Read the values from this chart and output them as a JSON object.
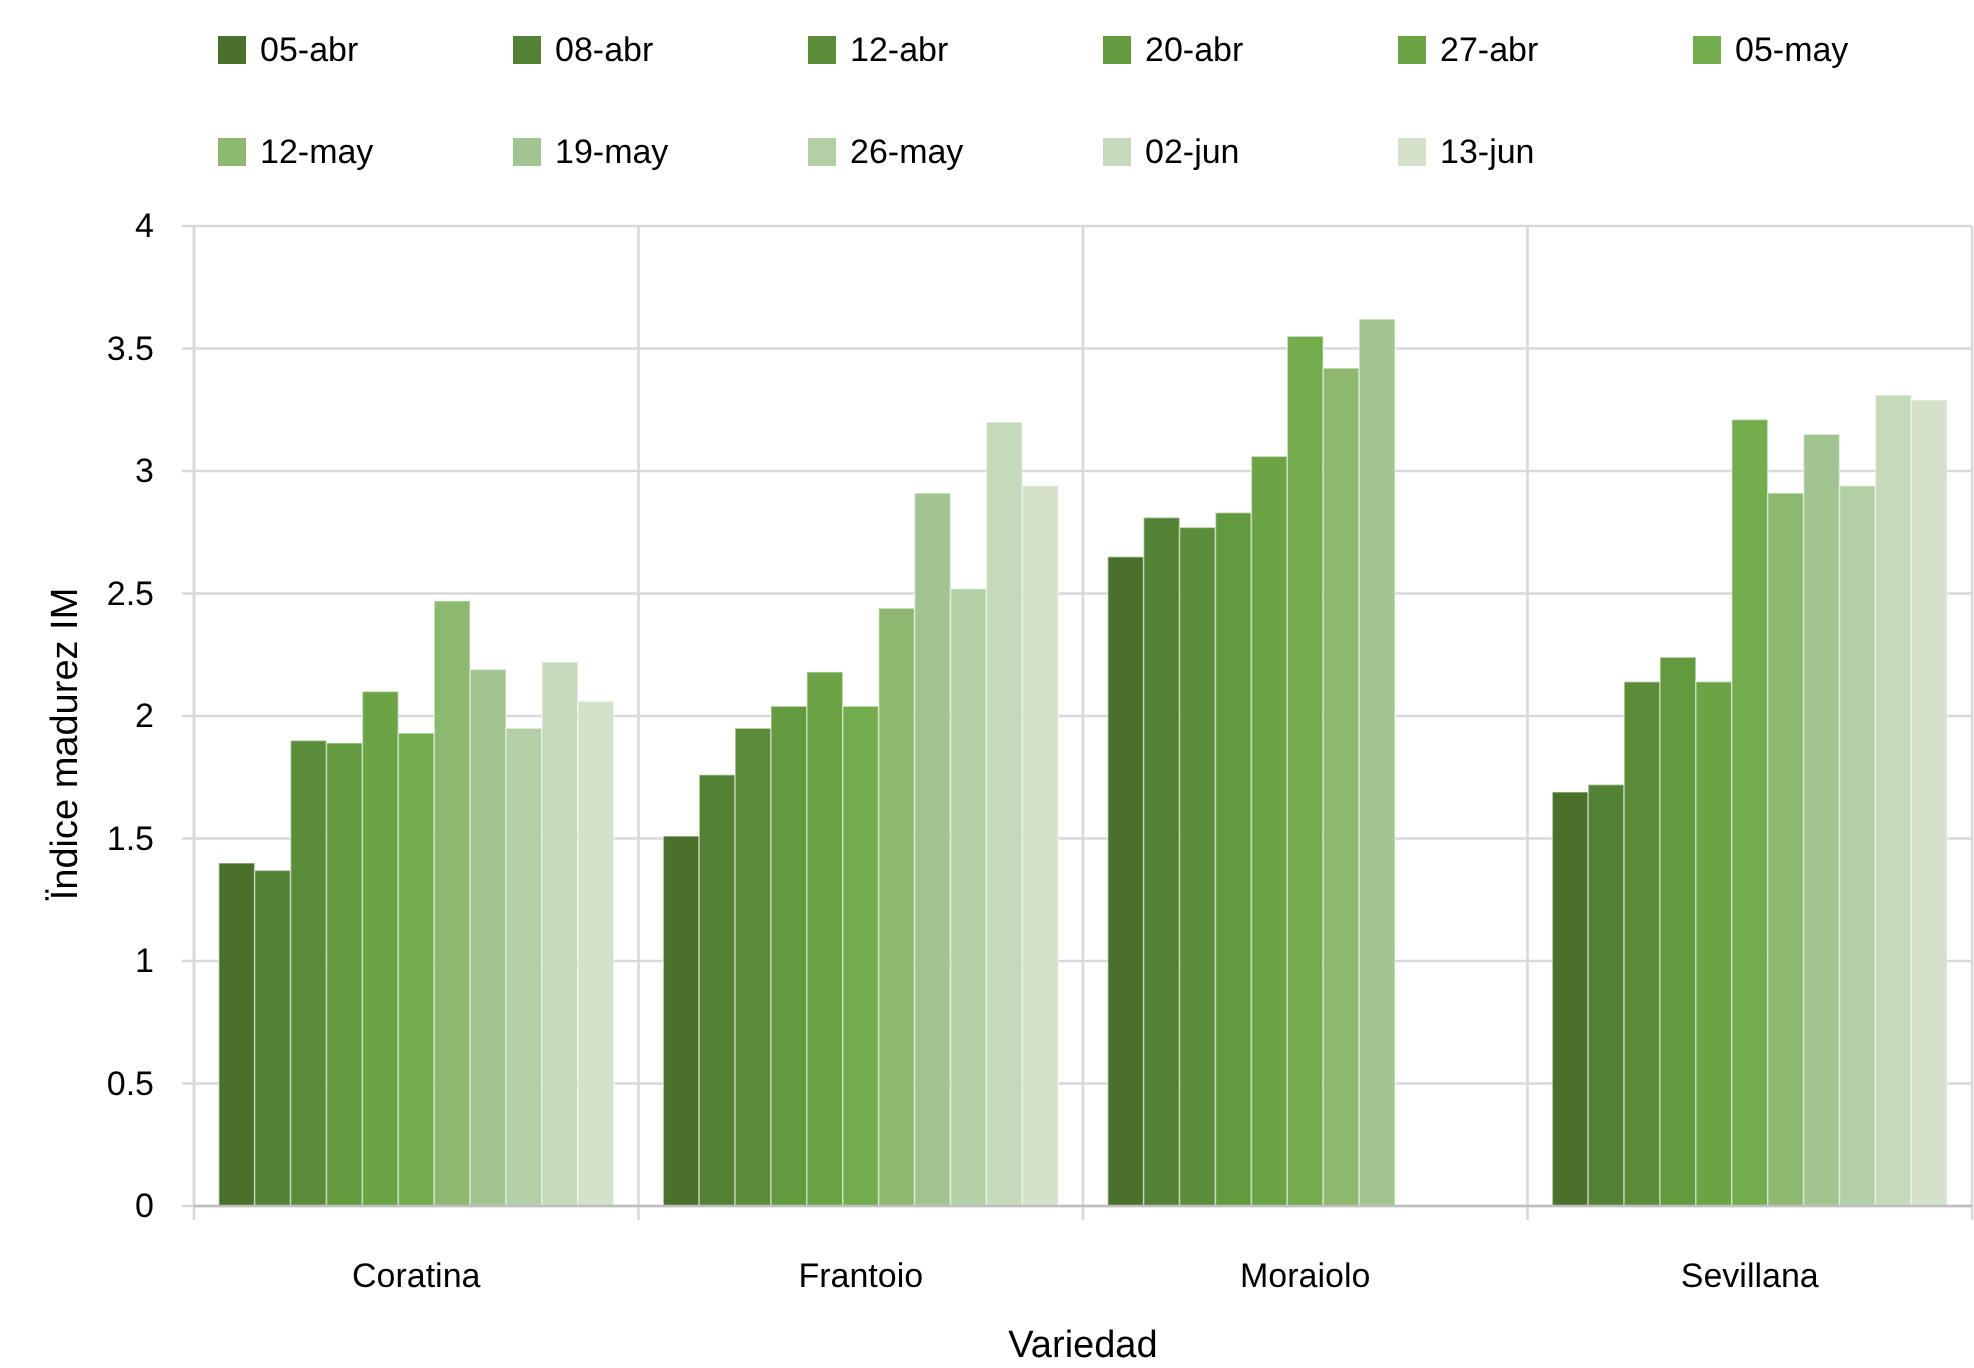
{
  "chart_data": {
    "type": "bar",
    "xlabel": "Variedad",
    "ylabel": "Ïndice madurez IM",
    "categories": [
      "Coratina",
      "Frantoio",
      "Moraiolo",
      "Sevillana"
    ],
    "series": [
      {
        "name": "05-abr",
        "color": "#4a712c",
        "values": [
          1.4,
          1.51,
          2.65,
          1.69
        ]
      },
      {
        "name": "08-abr",
        "color": "#538135",
        "values": [
          1.37,
          1.76,
          2.81,
          1.72
        ]
      },
      {
        "name": "12-abr",
        "color": "#5b8c3a",
        "values": [
          1.9,
          1.95,
          2.77,
          2.14
        ]
      },
      {
        "name": "20-abr",
        "color": "#639a40",
        "values": [
          1.89,
          2.04,
          2.83,
          2.24
        ]
      },
      {
        "name": "27-abr",
        "color": "#6ba345",
        "values": [
          2.1,
          2.18,
          3.06,
          2.14
        ]
      },
      {
        "name": "05-may",
        "color": "#72ac4d",
        "values": [
          1.93,
          2.04,
          3.55,
          3.21
        ]
      },
      {
        "name": "12-may",
        "color": "#8cb96f",
        "values": [
          2.47,
          2.44,
          3.42,
          2.91
        ]
      },
      {
        "name": "19-may",
        "color": "#a2c491",
        "values": [
          2.19,
          2.91,
          3.62,
          3.15
        ]
      },
      {
        "name": "26-may",
        "color": "#b3cfa5",
        "values": [
          1.95,
          2.52,
          null,
          2.94
        ]
      },
      {
        "name": "02-jun",
        "color": "#c5d9bb",
        "values": [
          2.22,
          3.2,
          null,
          3.31
        ]
      },
      {
        "name": "13-jun",
        "color": "#d4e1cb",
        "values": [
          2.06,
          2.94,
          null,
          3.29
        ]
      }
    ],
    "ylim": [
      0,
      4
    ],
    "yticks": [
      0,
      0.5,
      1,
      1.5,
      2,
      2.5,
      3,
      3.5,
      4
    ],
    "grid": true,
    "legend": "top"
  }
}
